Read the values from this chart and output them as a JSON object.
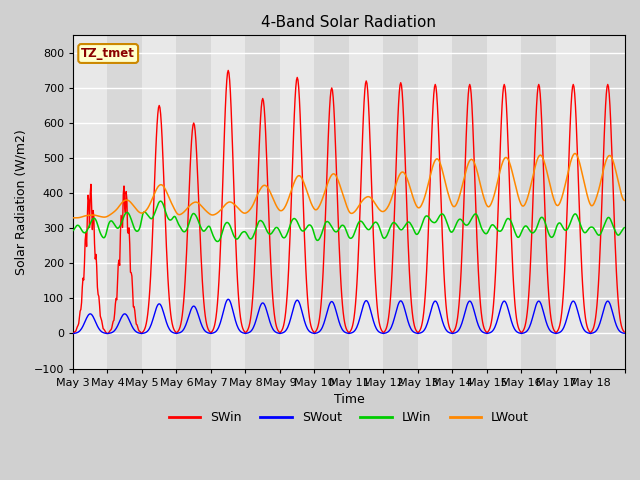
{
  "title": "4-Band Solar Radiation",
  "xlabel": "Time",
  "ylabel": "Solar Radiation (W/m2)",
  "ylim": [
    -100,
    850
  ],
  "yticks": [
    -100,
    0,
    100,
    200,
    300,
    400,
    500,
    600,
    700,
    800
  ],
  "legend_labels": [
    "SWin",
    "SWout",
    "LWin",
    "LWout"
  ],
  "legend_colors": [
    "#ff0000",
    "#0000ff",
    "#00cc00",
    "#ff8800"
  ],
  "line_colors": [
    "#ff0000",
    "#0000ff",
    "#00cc00",
    "#ff8800"
  ],
  "annotation_text": "TZ_tmet",
  "annotation_bg": "#ffffcc",
  "annotation_border": "#cc8800",
  "fig_bg": "#d0d0d0",
  "plot_bg": "#ffffff",
  "band_colors": [
    "#e8e8e8",
    "#d8d8d8"
  ],
  "grid_color": "#ffffff",
  "n_days": 16,
  "x_tick_labels": [
    "May 3",
    "May 4",
    "May 5",
    "May 6",
    "May 7",
    "May 8",
    "May 9",
    "May 10",
    "May 11",
    "May 12",
    "May 13",
    "May 14",
    "May 15",
    "May 16",
    "May 17",
    "May 18"
  ]
}
